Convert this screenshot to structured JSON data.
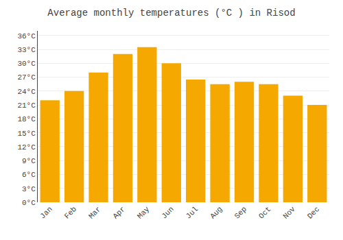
{
  "chart_data": {
    "type": "bar",
    "title": "Average monthly temperatures (°C ) in Risod",
    "categories": [
      "Jan",
      "Feb",
      "Mar",
      "Apr",
      "May",
      "Jun",
      "Jul",
      "Aug",
      "Sep",
      "Oct",
      "Nov",
      "Dec"
    ],
    "values": [
      22,
      24,
      28,
      32,
      33.5,
      30,
      26.5,
      25.5,
      26,
      25.5,
      23,
      21
    ],
    "color": "#F5A800",
    "ylim": [
      0,
      37
    ],
    "yticks": [
      {
        "value": 0,
        "label": "0°C"
      },
      {
        "value": 3,
        "label": "3°C"
      },
      {
        "value": 6,
        "label": "6°C"
      },
      {
        "value": 9,
        "label": "9°C"
      },
      {
        "value": 12,
        "label": "12°C"
      },
      {
        "value": 15,
        "label": "15°C"
      },
      {
        "value": 18,
        "label": "18°C"
      },
      {
        "value": 21,
        "label": "21°C"
      },
      {
        "value": 24,
        "label": "24°C"
      },
      {
        "value": 27,
        "label": "27°C"
      },
      {
        "value": 30,
        "label": "30°C"
      },
      {
        "value": 33,
        "label": "33°C"
      },
      {
        "value": 36,
        "label": "36°C"
      }
    ],
    "grid": true
  }
}
